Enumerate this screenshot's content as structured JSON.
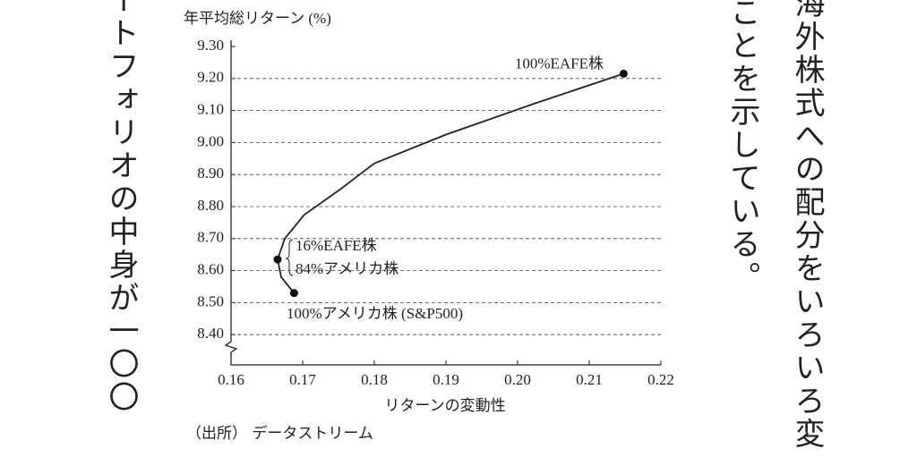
{
  "chart_data": {
    "type": "line",
    "y_label": "年平均総リターン (%)",
    "x_label": "リターンの変動性",
    "x": [
      0.1688,
      0.167,
      0.1665,
      0.1675,
      0.1702,
      0.175,
      0.18,
      0.19,
      0.2025,
      0.2148
    ],
    "values": [
      8.53,
      8.58,
      8.635,
      8.7,
      8.774,
      8.85,
      8.935,
      9.025,
      9.123,
      9.215
    ],
    "color": "#222222",
    "points": {
      "x": [
        0.2148,
        0.1665,
        0.1688
      ],
      "y": [
        9.215,
        8.635,
        8.53
      ]
    },
    "annotations": [
      "100%EAFE株",
      "16%EAFE株",
      "84%アメリカ株",
      "100%アメリカ株 (S&P500)"
    ],
    "xlim": [
      0.16,
      0.22
    ],
    "ylim": [
      8.3,
      9.3
    ],
    "xticks": [
      0.16,
      0.17,
      0.18,
      0.19,
      {
        "value": 0.2,
        "label": "0.20"
      },
      0.21,
      0.22
    ],
    "yticks": [
      {
        "value": 8.4,
        "label": "8.40"
      },
      {
        "value": 8.5,
        "label": "8.50"
      },
      {
        "value": 8.6,
        "label": "8.60"
      },
      {
        "value": 8.7,
        "label": "8.70"
      },
      {
        "value": 8.8,
        "label": "8.80"
      },
      {
        "value": 8.9,
        "label": "8.90"
      },
      {
        "value": 9,
        "label": "9.00"
      },
      {
        "value": 9.1,
        "label": "9.10"
      },
      {
        "value": 9.2,
        "label": "9.20"
      },
      {
        "value": 9.3,
        "label": "9.30"
      }
    ],
    "grid": true
  },
  "source": "（出所） データストリーム",
  "body_text": {
    "left": "ートフォリオの中身が一〇〇",
    "middle": "ことを示している。",
    "right": "海外株式への配分をいろいろ変"
  }
}
